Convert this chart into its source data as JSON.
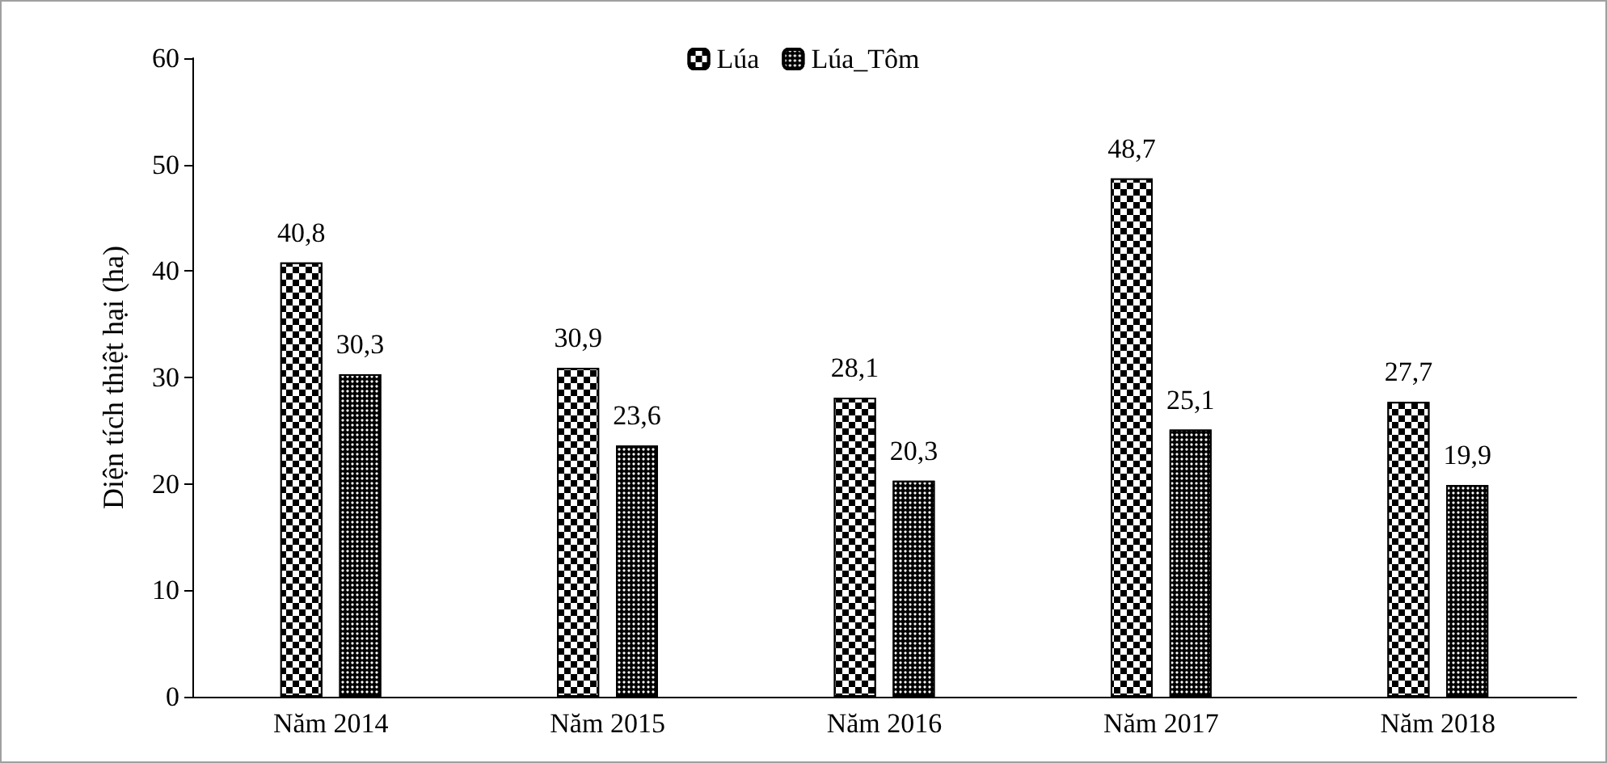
{
  "chart_data": {
    "type": "bar",
    "ylabel": "Diện tích thiệt hại (ha)",
    "categories": [
      "Năm 2014",
      "Năm 2015",
      "Năm 2016",
      "Năm 2017",
      "Năm 2018"
    ],
    "series": [
      {
        "name": "Lúa",
        "color": "#000000",
        "values": [
          40.8,
          30.9,
          28.1,
          48.7,
          27.7
        ],
        "value_labels": [
          "40,8",
          "30,9",
          "28,1",
          "48,7",
          "27,7"
        ]
      },
      {
        "name": "Lúa_Tôm",
        "color": "#000000",
        "values": [
          30.3,
          23.6,
          20.3,
          25.1,
          19.9
        ],
        "value_labels": [
          "30,3",
          "23,6",
          "20,3",
          "25,1",
          "19,9"
        ]
      }
    ],
    "ylim": [
      0,
      60
    ],
    "yticks": [
      0,
      10,
      20,
      30,
      40,
      50,
      60
    ],
    "grid": false,
    "legend": "top"
  }
}
